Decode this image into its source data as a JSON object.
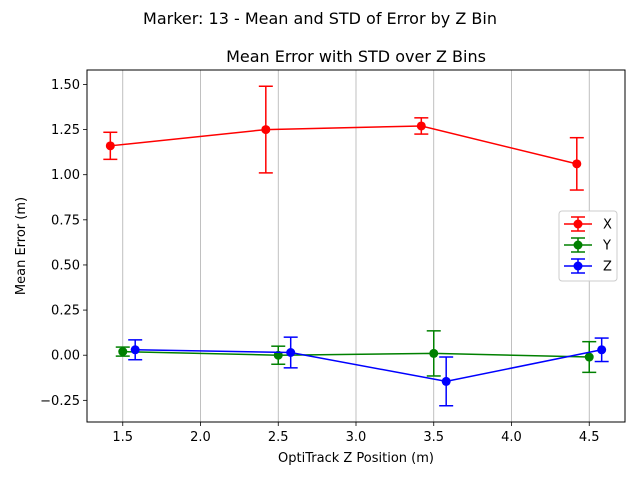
{
  "figure": {
    "suptitle": "Marker: 13 - Mean and STD of Error by Z Bin"
  },
  "chart_data": {
    "type": "line",
    "title": "Mean Error with STD over Z Bins",
    "xlabel": "OptiTrack Z Position (m)",
    "ylabel": "Mean Error (m)",
    "xlim": [
      1.27,
      4.73
    ],
    "ylim": [
      -0.37,
      1.58
    ],
    "x_ticks": [
      1.5,
      2.0,
      2.5,
      3.0,
      3.5,
      4.0,
      4.5
    ],
    "x_tick_labels": [
      "1.5",
      "2.0",
      "2.5",
      "3.0",
      "3.5",
      "4.0",
      "4.5"
    ],
    "y_ticks": [
      -0.25,
      0.0,
      0.25,
      0.5,
      0.75,
      1.0,
      1.25,
      1.5
    ],
    "y_tick_labels": [
      "−0.25",
      "0.00",
      "0.25",
      "0.50",
      "0.75",
      "1.00",
      "1.25",
      "1.50"
    ],
    "grid": "vertical",
    "legend": "center-right",
    "error_bars": true,
    "series": [
      {
        "name": "X",
        "color": "#ff0000",
        "marker": "circle",
        "x": [
          1.42,
          2.42,
          3.42,
          4.42
        ],
        "values": [
          1.16,
          1.25,
          1.27,
          1.06
        ],
        "std": [
          0.075,
          0.24,
          0.045,
          0.145
        ]
      },
      {
        "name": "Y",
        "color": "#008000",
        "marker": "circle",
        "x": [
          1.5,
          2.5,
          3.5,
          4.5
        ],
        "values": [
          0.02,
          0.0,
          0.01,
          -0.01
        ],
        "std": [
          0.025,
          0.05,
          0.125,
          0.085
        ]
      },
      {
        "name": "Z",
        "color": "#0000ff",
        "marker": "circle",
        "x": [
          1.58,
          2.58,
          3.58,
          4.58
        ],
        "values": [
          0.03,
          0.015,
          -0.145,
          0.03
        ],
        "std": [
          0.055,
          0.085,
          0.135,
          0.065
        ]
      }
    ]
  }
}
